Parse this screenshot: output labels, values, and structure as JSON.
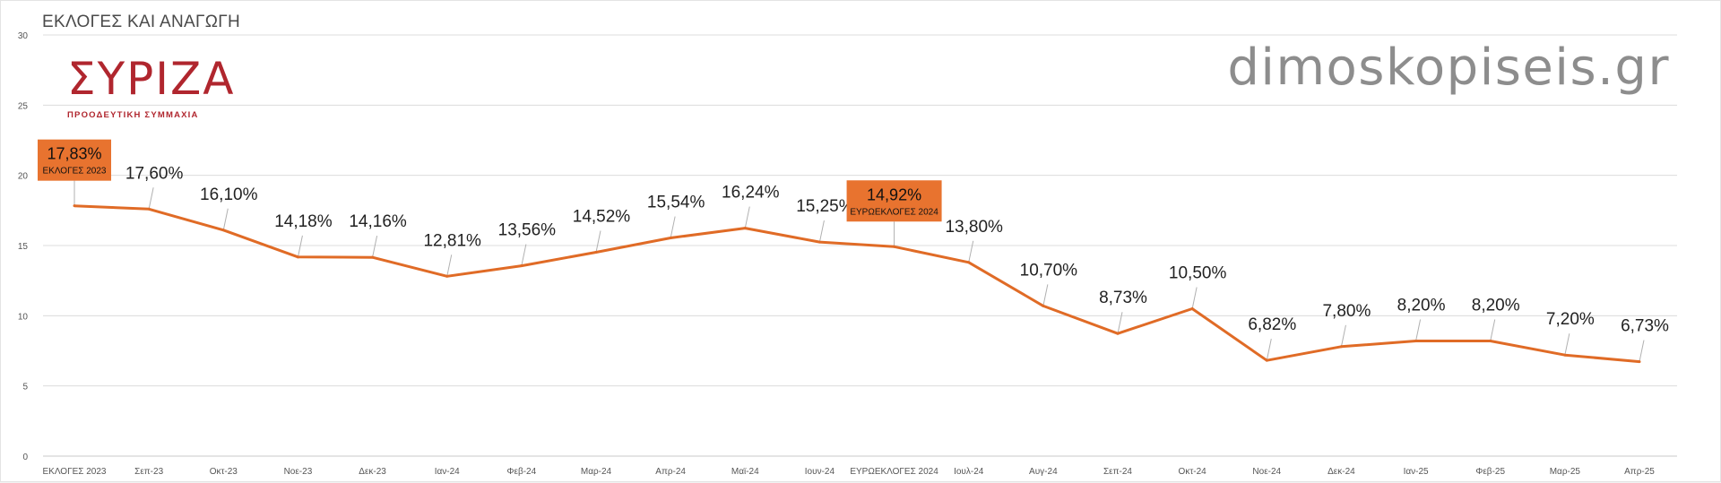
{
  "page": {
    "title": "ΕΚΛΟΓΕΣ ΚΑΙ ΑΝΑΓΩΓΗ",
    "brand": "dimoskopiseis.gr",
    "logo_text": "ΣΥΡΙΖΑ",
    "logo_subtitle": "ΠΡΟΟΔΕΥΤΙΚΗ ΣΥΜΜΑΧΙΑ"
  },
  "colors": {
    "line": "#e06b26",
    "highlight_box": "#e8732f",
    "grid": "#dcdcdc",
    "logo": "#b0262e"
  },
  "chart_data": {
    "type": "line",
    "title": "",
    "xlabel": "",
    "ylabel": "",
    "ylim": [
      0,
      30
    ],
    "yticks": [
      0,
      5,
      10,
      15,
      20,
      25,
      30
    ],
    "grid": true,
    "legend": "none",
    "categories": [
      "ΕΚΛΟΓΕΣ 2023",
      "Σεπ-23",
      "Οκτ-23",
      "Νοε-23",
      "Δεκ-23",
      "Ιαν-24",
      "Φεβ-24",
      "Μαρ-24",
      "Απρ-24",
      "Μαϊ-24",
      "Ιουν-24",
      "ΕΥΡΩΕΚΛΟΓΕΣ 2024",
      "Ιουλ-24",
      "Αυγ-24",
      "Σεπ-24",
      "Οκτ-24",
      "Νοε-24",
      "Δεκ-24",
      "Ιαν-25",
      "Φεβ-25",
      "Μαρ-25",
      "Απρ-25"
    ],
    "series": [
      {
        "values": [
          17.83,
          17.6,
          16.1,
          14.18,
          14.16,
          12.81,
          13.56,
          14.52,
          15.54,
          16.24,
          15.25,
          14.92,
          13.8,
          10.7,
          8.73,
          10.5,
          6.82,
          7.8,
          8.2,
          8.2,
          7.2,
          6.73
        ]
      }
    ],
    "data_labels": [
      "17,83%",
      "17,60%",
      "16,10%",
      "14,18%",
      "14,16%",
      "12,81%",
      "13,56%",
      "14,52%",
      "15,54%",
      "16,24%",
      "15,25%",
      "14,92%",
      "13,80%",
      "10,70%",
      "8,73%",
      "10,50%",
      "6,82%",
      "7,80%",
      "8,20%",
      "8,20%",
      "7,20%",
      "6,73%"
    ],
    "highlights": [
      {
        "index": 0,
        "label": "17,83%",
        "sublabel": "ΕΚΛΟΓΕΣ 2023"
      },
      {
        "index": 11,
        "label": "14,92%",
        "sublabel": "ΕΥΡΩΕΚΛΟΓΕΣ 2024"
      }
    ]
  }
}
